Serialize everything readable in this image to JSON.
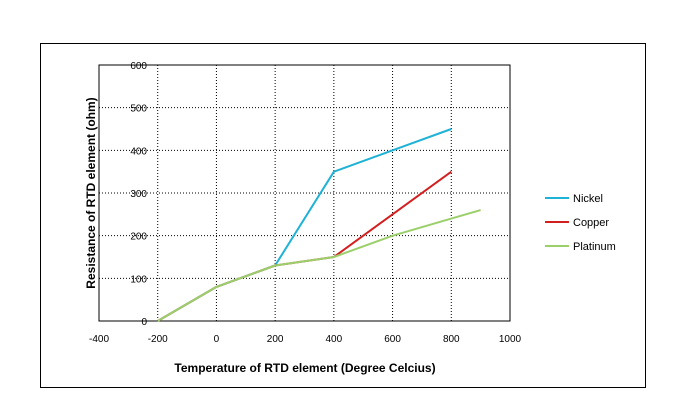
{
  "chart_data": {
    "type": "line",
    "title": "",
    "xlabel": "Temperature of RTD element (Degree Celcius)",
    "ylabel": "Resistance  of  RTD element (ohm)",
    "xlim": [
      -400,
      1000
    ],
    "ylim": [
      0,
      600
    ],
    "xticks": [
      -400,
      -200,
      0,
      200,
      400,
      600,
      800,
      1000
    ],
    "yticks": [
      0,
      100,
      200,
      300,
      400,
      500,
      600
    ],
    "grid": true,
    "legend_position": "right",
    "series": [
      {
        "name": "Nickel",
        "color": "#1fb2d6",
        "points": [
          [
            -200,
            0
          ],
          [
            0,
            80
          ],
          [
            200,
            130
          ],
          [
            400,
            350
          ],
          [
            600,
            400
          ],
          [
            800,
            450
          ]
        ]
      },
      {
        "name": "Copper",
        "color": "#d22020",
        "points": [
          [
            -200,
            0
          ],
          [
            0,
            80
          ],
          [
            200,
            130
          ],
          [
            400,
            150
          ],
          [
            600,
            250
          ],
          [
            800,
            350
          ]
        ]
      },
      {
        "name": "Platinum",
        "color": "#9bcf6a",
        "points": [
          [
            -200,
            0
          ],
          [
            0,
            80
          ],
          [
            200,
            130
          ],
          [
            400,
            150
          ],
          [
            600,
            200
          ],
          [
            800,
            240
          ],
          [
            900,
            260
          ]
        ]
      }
    ]
  }
}
